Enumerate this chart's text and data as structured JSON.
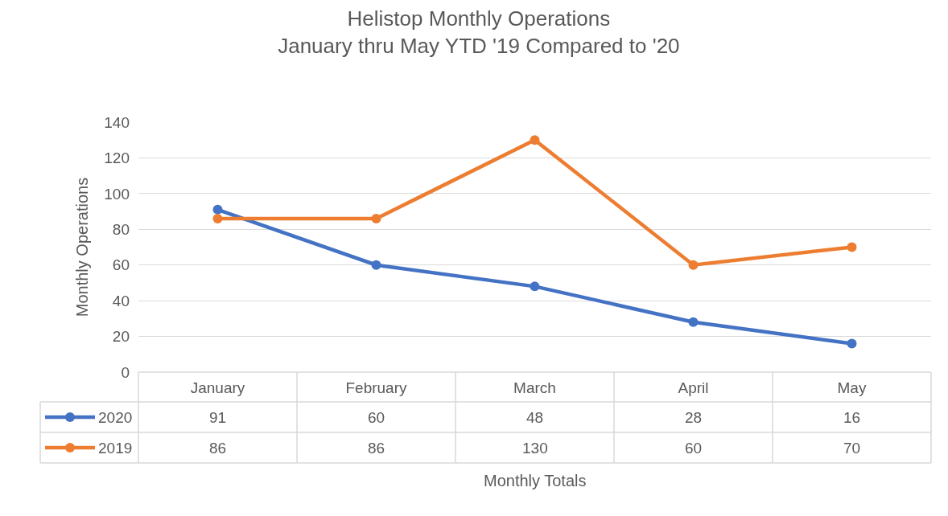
{
  "chart_data": {
    "type": "line",
    "title": "Helistop Monthly Operations\nJanuary thru May YTD '19 Compared to '20",
    "legend": "bottom",
    "xlabel": "Monthly Totals",
    "ylabel": "Monthly Operations",
    "categories": [
      "January",
      "February",
      "March",
      "April",
      "May"
    ],
    "series": [
      {
        "name": "2020",
        "color": "#4472c4",
        "values": [
          91,
          60,
          48,
          28,
          16
        ]
      },
      {
        "name": "2019",
        "color": "#ed7d31",
        "values": [
          86,
          86,
          130,
          60,
          70
        ]
      }
    ],
    "ylim": [
      0,
      140
    ],
    "yticks": [
      0,
      20,
      40,
      60,
      80,
      100,
      120,
      140
    ],
    "grid": "y",
    "marker": "circle",
    "line_style": "solid",
    "data_labels": true
  }
}
